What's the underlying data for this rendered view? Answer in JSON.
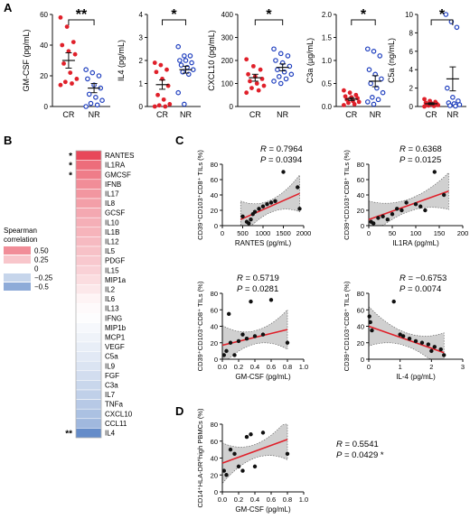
{
  "panel_labels": [
    "A",
    "B",
    "C",
    "D"
  ],
  "colors": {
    "cr": "#e0202a",
    "nr": "#1f3fbf",
    "fit": "#e0202a",
    "band": "#c8c8c8",
    "heat_pos": "#e8485a",
    "heat_neg": "#4a78c0"
  },
  "chart_data": [
    {
      "type": "scatter",
      "panel": "A",
      "subtype": "dot-plot",
      "ylabel": "GM-CSF (pg/mL)",
      "yticks": [
        "0",
        "20",
        "40",
        "60"
      ],
      "ylim": [
        0,
        60
      ],
      "categories": [
        "CR",
        "NR"
      ],
      "significance": "**",
      "series": [
        {
          "name": "CR",
          "values": [
            58,
            52,
            42,
            40,
            36,
            34,
            28,
            22,
            18,
            16,
            15,
            14
          ],
          "mean": 30,
          "sem": 5
        },
        {
          "name": "NR",
          "values": [
            24,
            22,
            20,
            18,
            14,
            12,
            8,
            6,
            4,
            2,
            1,
            0
          ],
          "mean": 12,
          "sem": 3
        }
      ]
    },
    {
      "type": "scatter",
      "panel": "A",
      "subtype": "dot-plot",
      "ylabel": "IL4 (pg/mL)",
      "yticks": [
        "0",
        "1",
        "2",
        "3",
        "4"
      ],
      "ylim": [
        0,
        4
      ],
      "categories": [
        "CR",
        "NR"
      ],
      "significance": "*",
      "series": [
        {
          "name": "CR",
          "values": [
            1.9,
            1.8,
            1.6,
            1.5,
            1.2,
            0.9,
            0.5,
            0.3,
            0.1,
            0.05,
            0.0,
            0.0
          ],
          "mean": 0.95,
          "sem": 0.2
        },
        {
          "name": "NR",
          "values": [
            2.6,
            2.2,
            2.2,
            2.0,
            2.0,
            1.9,
            1.8,
            1.7,
            1.6,
            1.5,
            1.4,
            0.6,
            0.1
          ],
          "mean": 1.6,
          "sem": 0.15
        }
      ]
    },
    {
      "type": "scatter",
      "panel": "A",
      "subtype": "dot-plot",
      "ylabel": "CXCL10 (pg/mL)",
      "yticks": [
        "0",
        "100",
        "200",
        "300",
        "400"
      ],
      "ylim": [
        0,
        400
      ],
      "categories": [
        "CR",
        "NR"
      ],
      "significance": "*",
      "series": [
        {
          "name": "CR",
          "values": [
            205,
            175,
            160,
            140,
            130,
            120,
            110,
            100,
            90,
            80,
            70,
            60
          ],
          "mean": 125,
          "sem": 15
        },
        {
          "name": "NR",
          "values": [
            250,
            230,
            220,
            200,
            190,
            175,
            160,
            150,
            140,
            130,
            120,
            110,
            100
          ],
          "mean": 170,
          "sem": 15
        }
      ]
    },
    {
      "type": "scatter",
      "panel": "A",
      "subtype": "dot-plot",
      "ylabel": "C3a (µg/mL)",
      "yticks": [
        "0.0",
        "0.5",
        "1.0",
        "1.5",
        "2.0"
      ],
      "ylim": [
        0,
        2
      ],
      "categories": [
        "CR",
        "NR"
      ],
      "significance": "*",
      "series": [
        {
          "name": "CR",
          "values": [
            0.35,
            0.3,
            0.25,
            0.22,
            0.2,
            0.18,
            0.15,
            0.12,
            0.1,
            0.08,
            0.05,
            0.03
          ],
          "mean": 0.16,
          "sem": 0.03
        },
        {
          "name": "NR",
          "values": [
            1.25,
            1.2,
            1.1,
            0.8,
            0.7,
            0.6,
            0.5,
            0.4,
            0.3,
            0.2,
            0.15,
            0.1,
            0.05
          ],
          "mean": 0.55,
          "sem": 0.12
        }
      ]
    },
    {
      "type": "scatter",
      "panel": "A",
      "subtype": "dot-plot",
      "ylabel": "C5a (ng/mL)",
      "yticks": [
        "0",
        "2",
        "4",
        "6",
        "8",
        "10"
      ],
      "ylim": [
        0,
        10
      ],
      "categories": [
        "CR",
        "NR"
      ],
      "significance": "*",
      "series": [
        {
          "name": "CR",
          "values": [
            0.8,
            0.6,
            0.5,
            0.4,
            0.35,
            0.3,
            0.25,
            0.2,
            0.15,
            0.1,
            0.05,
            0.0
          ],
          "mean": 0.3,
          "sem": 0.1
        },
        {
          "name": "NR",
          "values": [
            10,
            9.2,
            8.6,
            2.0,
            1.0,
            0.6,
            0.4,
            0.3,
            0.2,
            0.1,
            0.05
          ],
          "mean": 3.0,
          "sem": 1.3
        }
      ]
    },
    {
      "type": "heatmap",
      "panel": "B",
      "legend_title": [
        "Spearman",
        "correlation"
      ],
      "legend_ticks": [
        "0.50",
        "0.25",
        "0",
        "−0.25",
        "−0.5"
      ],
      "legend_values": [
        0.5,
        0.25,
        0,
        -0.25,
        -0.5
      ],
      "rows": [
        "RANTES",
        "IL1RA",
        "GMCSF",
        "IFNB",
        "IL17",
        "IL8",
        "GCSF",
        "IL10",
        "IL1B",
        "IL12",
        "IL5",
        "PDGF",
        "IL15",
        "MIP1a",
        "IL2",
        "IL6",
        "IL13",
        "IFNG",
        "MIP1b",
        "MCP1",
        "VEGF",
        "C5a",
        "IL9",
        "FGF",
        "C3a",
        "IL7",
        "TNFa",
        "CXCL10",
        "CCL11",
        "IL4"
      ],
      "values": [
        0.8,
        0.64,
        0.57,
        0.5,
        0.46,
        0.42,
        0.38,
        0.35,
        0.33,
        0.3,
        0.27,
        0.24,
        0.2,
        0.15,
        0.1,
        0.05,
        0.02,
        -0.01,
        -0.04,
        -0.07,
        -0.1,
        -0.13,
        -0.16,
        -0.2,
        -0.24,
        -0.28,
        -0.32,
        -0.37,
        -0.42,
        -0.68
      ],
      "stars": {
        "0": "*",
        "1": "*",
        "2": "*",
        "29": "**"
      }
    },
    {
      "type": "scatter",
      "panel": "C",
      "fit": "linear-with-ci",
      "xlabel": "RANTES (pg/mL)",
      "ylabel": "CD39⁺CD103⁺CD8⁺ TILs (%)",
      "xlim": [
        0,
        2000
      ],
      "ylim": [
        0,
        80
      ],
      "xticks": [
        0,
        500,
        1000,
        1500,
        2000
      ],
      "yticks": [
        0,
        20,
        40,
        60,
        80
      ],
      "stats": {
        "R": "0.7964",
        "P": "0.0394"
      },
      "x": [
        500,
        600,
        650,
        700,
        750,
        800,
        900,
        1000,
        1100,
        1200,
        1300,
        1500,
        1850,
        1900
      ],
      "y": [
        12,
        5,
        3,
        8,
        15,
        18,
        22,
        25,
        28,
        30,
        32,
        70,
        50,
        22
      ],
      "fit_line": [
        [
          450,
          8
        ],
        [
          1900,
          42
        ]
      ]
    },
    {
      "type": "scatter",
      "panel": "C",
      "fit": "linear-with-ci",
      "xlabel": "IL1RA (pg/mL)",
      "ylabel": "CD39⁺CD103⁺CD8⁺ TILs (%)",
      "xlim": [
        0,
        200
      ],
      "ylim": [
        0,
        80
      ],
      "xticks": [
        0,
        50,
        100,
        150,
        200
      ],
      "yticks": [
        0,
        20,
        40,
        60,
        80
      ],
      "stats": {
        "R": "0.6368",
        "P": "0.0125"
      },
      "x": [
        5,
        10,
        20,
        30,
        40,
        50,
        60,
        70,
        80,
        100,
        110,
        120,
        140,
        160
      ],
      "y": [
        5,
        3,
        10,
        12,
        8,
        15,
        22,
        20,
        30,
        28,
        25,
        20,
        70,
        40
      ],
      "fit_line": [
        [
          0,
          8
        ],
        [
          170,
          45
        ]
      ]
    },
    {
      "type": "scatter",
      "panel": "C",
      "fit": "linear-with-ci",
      "xlabel": "GM-CSF (pg/mL)",
      "ylabel": "CD39⁺CD103⁺CD8⁺ TILs (%)",
      "xlim": [
        0,
        1.0
      ],
      "ylim": [
        0,
        80
      ],
      "xticks": [
        "0.0",
        "0.2",
        "0.4",
        "0.6",
        "0.8",
        "1.0"
      ],
      "yticks": [
        0,
        20,
        40,
        60,
        80
      ],
      "stats": {
        "R": "0.5719",
        "P": "0.0281"
      },
      "x": [
        0.02,
        0.05,
        0.08,
        0.1,
        0.15,
        0.2,
        0.25,
        0.3,
        0.35,
        0.4,
        0.5,
        0.6,
        0.8
      ],
      "y": [
        5,
        10,
        55,
        20,
        5,
        22,
        30,
        25,
        70,
        28,
        30,
        72,
        20
      ],
      "fit_line": [
        [
          0,
          17
        ],
        [
          0.8,
          36
        ]
      ]
    },
    {
      "type": "scatter",
      "panel": "C",
      "fit": "linear-with-ci",
      "xlabel": "IL-4 (pg/mL)",
      "ylabel": "CD39⁺CD103⁺CD8⁺ TILs (%)",
      "xlim": [
        0,
        3
      ],
      "ylim": [
        0,
        80
      ],
      "xticks": [
        0,
        1,
        2,
        3
      ],
      "yticks": [
        0,
        20,
        40,
        60,
        80
      ],
      "stats": {
        "R": "−0.6753",
        "P": "0.0074"
      },
      "x": [
        0.02,
        0.05,
        0.1,
        0.8,
        1.0,
        1.1,
        1.3,
        1.5,
        1.7,
        1.9,
        2.0,
        2.1,
        2.3,
        2.4
      ],
      "y": [
        52,
        45,
        35,
        70,
        30,
        28,
        25,
        22,
        20,
        18,
        10,
        15,
        12,
        5
      ],
      "fit_line": [
        [
          0,
          40
        ],
        [
          2.4,
          8
        ]
      ]
    },
    {
      "type": "scatter",
      "panel": "D",
      "fit": "linear-with-ci",
      "xlabel": "GM-CSF (pg/mL)",
      "ylabel": "CD14⁺HLA-DR^high PBMCs (%)",
      "xlim": [
        0,
        1.0
      ],
      "ylim": [
        0,
        80
      ],
      "xticks": [
        "0.0",
        "0.2",
        "0.4",
        "0.6",
        "0.8",
        "1.0"
      ],
      "yticks": [
        0,
        20,
        40,
        60,
        80
      ],
      "stats": {
        "R": "0.5541",
        "P": "0.0429",
        "sig": "*"
      },
      "x": [
        0.02,
        0.05,
        0.1,
        0.15,
        0.2,
        0.25,
        0.3,
        0.35,
        0.4,
        0.5,
        0.8
      ],
      "y": [
        25,
        20,
        50,
        45,
        30,
        25,
        65,
        68,
        30,
        70,
        45
      ],
      "fit_line": [
        [
          0,
          34
        ],
        [
          0.8,
          62
        ]
      ]
    }
  ]
}
